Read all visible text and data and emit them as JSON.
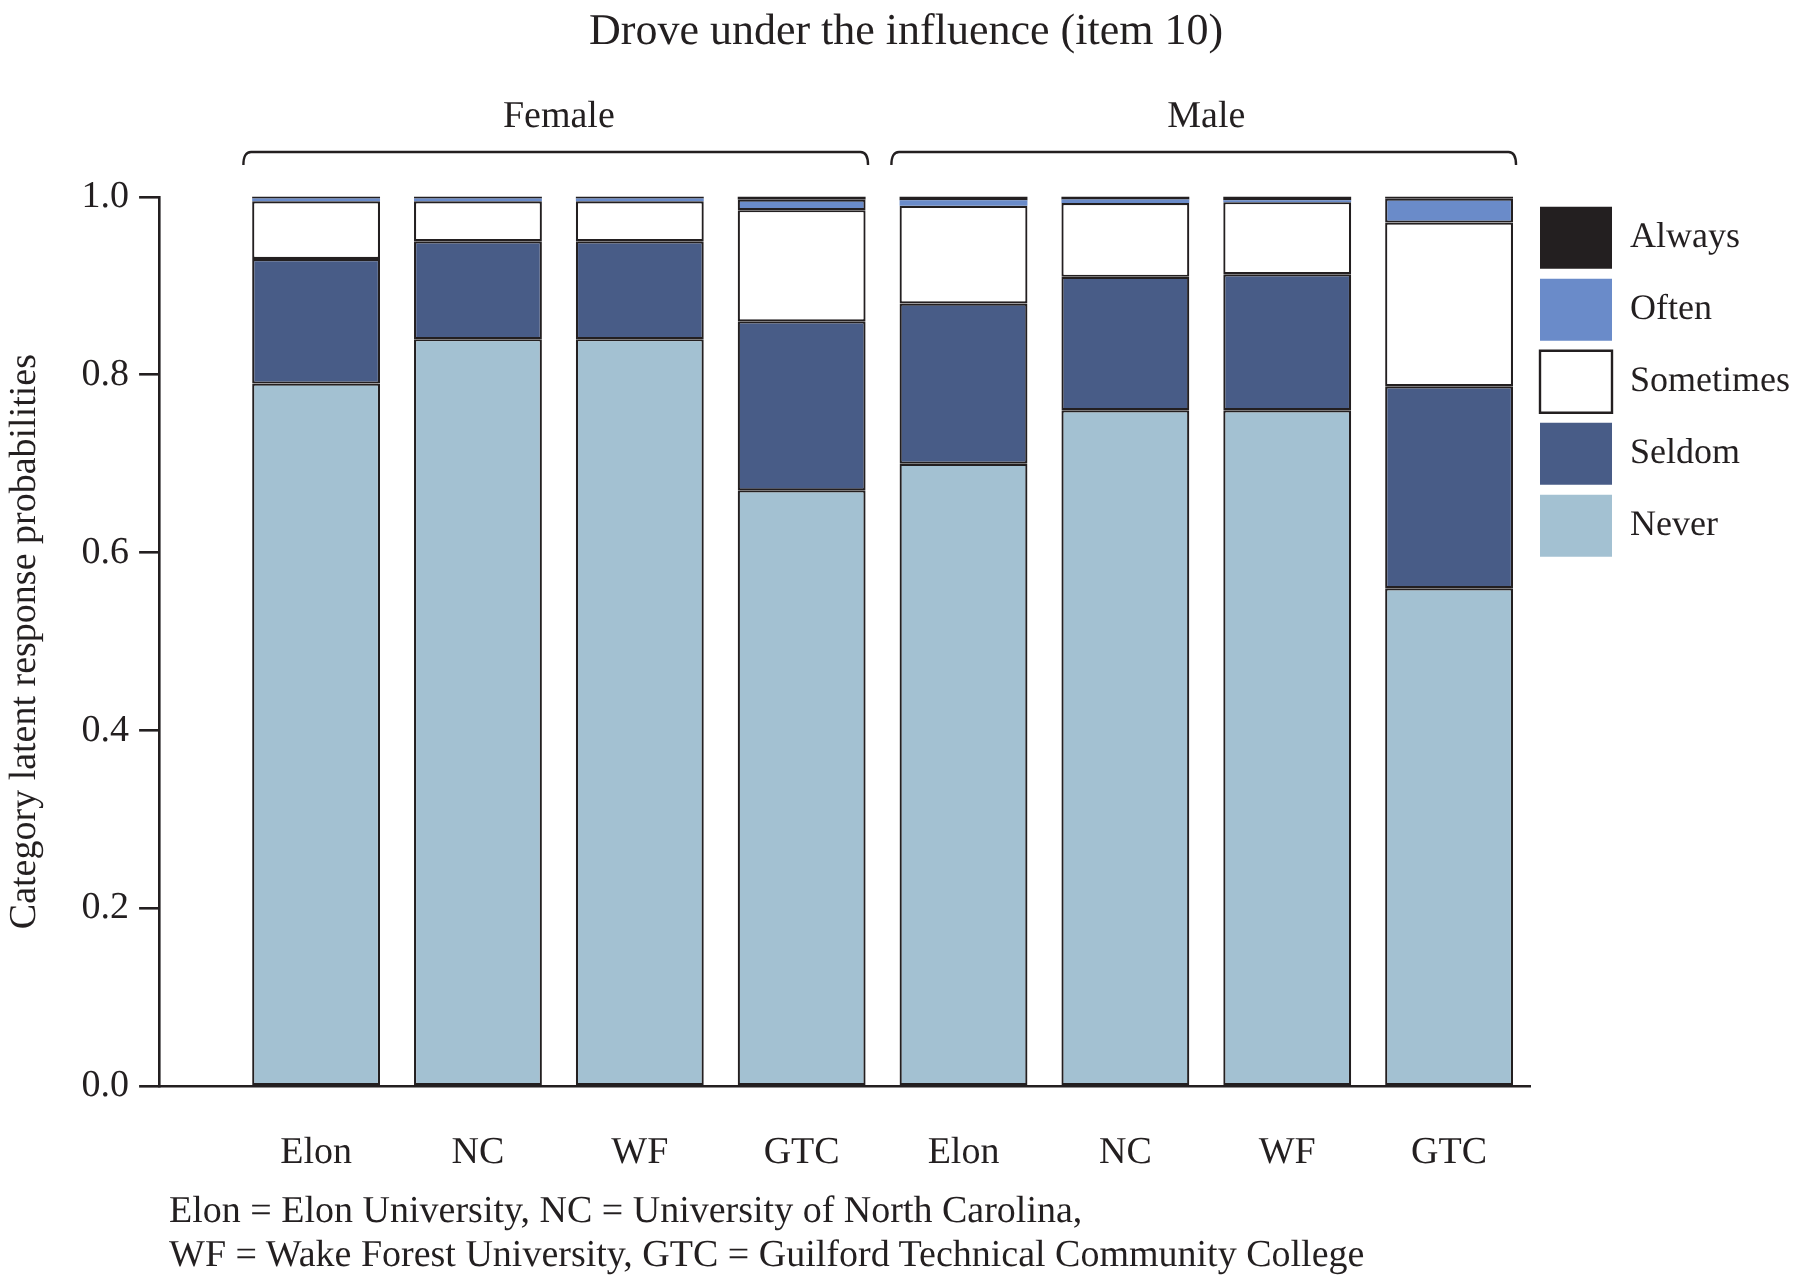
{
  "chart_data": {
    "type": "bar",
    "title": "Drove under the influence (item 10)",
    "ylabel": "Category latent response probabilities",
    "categories": [
      "Elon",
      "NC",
      "WF",
      "GTC",
      "Elon",
      "NC",
      "WF",
      "GTC"
    ],
    "stacked": true,
    "series": [
      {
        "name": "Never",
        "color": "#a3c1d2",
        "values": [
          0.79,
          0.84,
          0.84,
          0.67,
          0.7,
          0.76,
          0.76,
          0.56
        ]
      },
      {
        "name": "Seldom",
        "color": "#485c87",
        "values": [
          0.14,
          0.11,
          0.11,
          0.19,
          0.18,
          0.15,
          0.153,
          0.227
        ]
      },
      {
        "name": "Sometimes",
        "color": "#ffffff",
        "values": [
          0.065,
          0.045,
          0.045,
          0.125,
          0.11,
          0.083,
          0.081,
          0.184
        ]
      },
      {
        "name": "Often",
        "color": "#6a8bc9",
        "values": [
          0.003,
          0.003,
          0.003,
          0.012,
          0.006,
          0.004,
          0.002,
          0.027
        ]
      },
      {
        "name": "Always",
        "color": "#231f20",
        "values": [
          0.002,
          0.002,
          0.002,
          0.003,
          0.004,
          0.003,
          0.004,
          0.002
        ]
      }
    ],
    "ylim": [
      0,
      1
    ],
    "yticks": [
      {
        "value": 0,
        "label": "0.0"
      },
      0.2,
      0.4,
      0.6,
      0.8,
      {
        "value": 1,
        "label": "1.0"
      }
    ],
    "legend": "top right",
    "annotations": [
      "Female",
      "Male",
      "Elon = Elon University, NC = University of North Carolina,\nWF = Wake Forest University, GTC = Guilford Technical Community College"
    ]
  }
}
